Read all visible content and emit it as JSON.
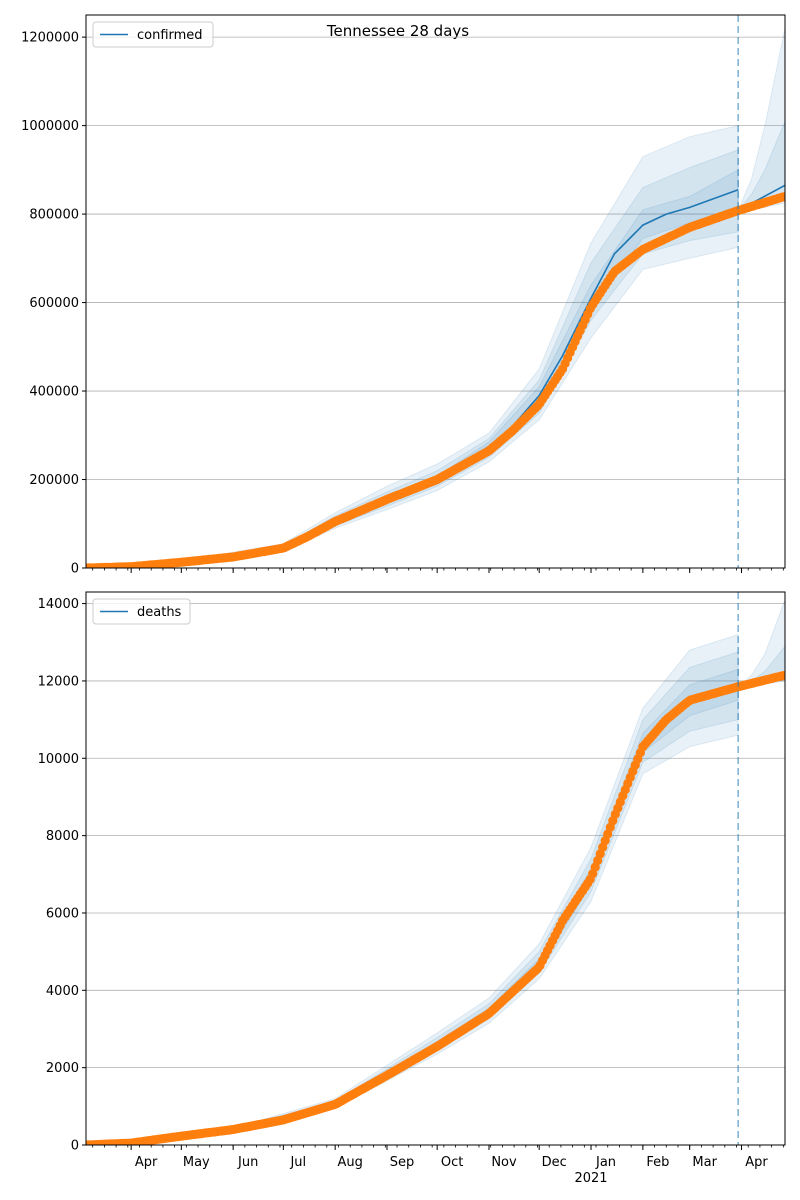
{
  "figure": {
    "title": "Tennessee 28 days"
  },
  "colors": {
    "model_line": "#1f77b4",
    "band": "#1f77b4",
    "observed": "#ff7f0e",
    "grid": "#b0b0b0",
    "forecast_marker": "#1f77b4"
  },
  "chart_data": [
    {
      "type": "line",
      "panel": "confirmed",
      "legend": {
        "entries": [
          "confirmed"
        ],
        "placement": "upper-left"
      },
      "x_axis": {
        "range": [
          "2020-03-05",
          "2021-04-27"
        ],
        "major_ticks": [
          {
            "date": "2020-04-01",
            "label": "Apr"
          },
          {
            "date": "2020-05-01",
            "label": "May"
          },
          {
            "date": "2020-06-01",
            "label": "Jun"
          },
          {
            "date": "2020-07-01",
            "label": "Jul"
          },
          {
            "date": "2020-08-01",
            "label": "Aug"
          },
          {
            "date": "2020-09-01",
            "label": "Sep"
          },
          {
            "date": "2020-10-01",
            "label": "Oct"
          },
          {
            "date": "2020-11-01",
            "label": "Nov"
          },
          {
            "date": "2020-12-01",
            "label": "Dec"
          },
          {
            "date": "2021-01-01",
            "label": "Jan"
          },
          {
            "date": "2021-02-01",
            "label": "Feb"
          },
          {
            "date": "2021-03-01",
            "label": "Mar"
          },
          {
            "date": "2021-04-01",
            "label": "Apr"
          }
        ],
        "year_label": "",
        "show_labels": false
      },
      "y_axis": {
        "range": [
          0,
          1250000
        ],
        "ticks": [
          0,
          200000,
          400000,
          600000,
          800000,
          1000000,
          1200000
        ],
        "tick_labels": [
          "0",
          "200000",
          "400000",
          "600000",
          "800000",
          "1000000",
          "1200000"
        ]
      },
      "grid": "horizontal",
      "forecast_start": "2021-03-30",
      "observed": {
        "x": [
          "2020-03-05",
          "2020-04-01",
          "2020-05-01",
          "2020-06-01",
          "2020-07-01",
          "2020-07-15",
          "2020-08-01",
          "2020-09-01",
          "2020-10-01",
          "2020-11-01",
          "2020-11-15",
          "2020-12-01",
          "2020-12-15",
          "2021-01-01",
          "2021-01-15",
          "2021-02-01",
          "2021-03-01",
          "2021-03-30",
          "2021-04-27"
        ],
        "y": [
          0,
          3000,
          13000,
          25000,
          45000,
          70000,
          105000,
          155000,
          200000,
          265000,
          310000,
          370000,
          450000,
          590000,
          670000,
          720000,
          770000,
          808000,
          840000
        ]
      },
      "model": {
        "x": [
          "2020-03-05",
          "2020-04-01",
          "2020-05-01",
          "2020-06-01",
          "2020-07-01",
          "2020-07-15",
          "2020-08-01",
          "2020-09-01",
          "2020-10-01",
          "2020-11-01",
          "2020-11-15",
          "2020-12-01",
          "2020-12-15",
          "2021-01-01",
          "2021-01-15",
          "2021-02-01",
          "2021-02-15",
          "2021-03-01",
          "2021-03-30"
        ],
        "y": [
          0,
          3000,
          13000,
          25000,
          45000,
          70000,
          105000,
          155000,
          200000,
          275000,
          320000,
          390000,
          480000,
          610000,
          710000,
          775000,
          800000,
          815000,
          855000
        ]
      },
      "forecast_line": {
        "x": [
          "2021-03-30",
          "2021-04-27"
        ],
        "y": [
          808000,
          865000
        ]
      },
      "bands": [
        {
          "x": [
            "2020-03-05",
            "2020-05-01",
            "2020-07-01",
            "2020-08-01",
            "2020-09-01",
            "2020-10-01",
            "2020-11-01",
            "2020-12-01",
            "2021-01-01",
            "2021-02-01",
            "2021-03-01",
            "2021-03-30"
          ],
          "lower": [
            0,
            10000,
            38000,
            90000,
            132000,
            175000,
            240000,
            335000,
            520000,
            675000,
            700000,
            725000
          ],
          "upper": [
            0,
            16000,
            55000,
            125000,
            185000,
            235000,
            305000,
            450000,
            735000,
            930000,
            975000,
            1000000
          ]
        },
        {
          "x": [
            "2020-03-05",
            "2020-05-01",
            "2020-07-01",
            "2020-08-01",
            "2020-09-01",
            "2020-10-01",
            "2020-11-01",
            "2020-12-01",
            "2021-01-01",
            "2021-02-01",
            "2021-03-01",
            "2021-03-30"
          ],
          "lower": [
            0,
            11000,
            40000,
            95000,
            140000,
            185000,
            250000,
            350000,
            560000,
            710000,
            740000,
            760000
          ],
          "upper": [
            0,
            15000,
            50000,
            118000,
            172000,
            220000,
            293000,
            425000,
            690000,
            860000,
            905000,
            945000
          ]
        },
        {
          "x": [
            "2020-03-05",
            "2020-05-01",
            "2020-07-01",
            "2020-08-01",
            "2020-09-01",
            "2020-10-01",
            "2020-11-01",
            "2020-12-01",
            "2021-01-01",
            "2021-02-01",
            "2021-03-01",
            "2021-03-30"
          ],
          "lower": [
            0,
            12000,
            42000,
            100000,
            148000,
            192000,
            262000,
            368000,
            585000,
            745000,
            780000,
            808000
          ],
          "upper": [
            0,
            14000,
            48000,
            110000,
            162000,
            208000,
            285000,
            410000,
            640000,
            810000,
            840000,
            900000
          ]
        },
        {
          "x": [
            "2021-03-30",
            "2021-04-07",
            "2021-04-15",
            "2021-04-27"
          ],
          "lower": [
            808000,
            810000,
            815000,
            825000
          ],
          "upper": [
            808000,
            880000,
            1000000,
            1220000
          ]
        },
        {
          "x": [
            "2021-03-30",
            "2021-04-07",
            "2021-04-15",
            "2021-04-27"
          ],
          "lower": [
            808000,
            812000,
            820000,
            832000
          ],
          "upper": [
            808000,
            845000,
            900000,
            1010000
          ]
        }
      ]
    },
    {
      "type": "line",
      "panel": "deaths",
      "legend": {
        "entries": [
          "deaths"
        ],
        "placement": "upper-left"
      },
      "x_axis": {
        "range": [
          "2020-03-05",
          "2021-04-27"
        ],
        "major_ticks": [
          {
            "date": "2020-04-01",
            "label": "Apr"
          },
          {
            "date": "2020-05-01",
            "label": "May"
          },
          {
            "date": "2020-06-01",
            "label": "Jun"
          },
          {
            "date": "2020-07-01",
            "label": "Jul"
          },
          {
            "date": "2020-08-01",
            "label": "Aug"
          },
          {
            "date": "2020-09-01",
            "label": "Sep"
          },
          {
            "date": "2020-10-01",
            "label": "Oct"
          },
          {
            "date": "2020-11-01",
            "label": "Nov"
          },
          {
            "date": "2020-12-01",
            "label": "Dec"
          },
          {
            "date": "2021-01-01",
            "label": "Jan"
          },
          {
            "date": "2021-02-01",
            "label": "Feb"
          },
          {
            "date": "2021-03-01",
            "label": "Mar"
          },
          {
            "date": "2021-04-01",
            "label": "Apr"
          }
        ],
        "year_label": "2021",
        "show_labels": true
      },
      "y_axis": {
        "range": [
          0,
          14300
        ],
        "ticks": [
          0,
          2000,
          4000,
          6000,
          8000,
          10000,
          12000,
          14000
        ],
        "tick_labels": [
          "0",
          "2000",
          "4000",
          "6000",
          "8000",
          "10000",
          "12000",
          "14000"
        ]
      },
      "grid": "horizontal",
      "forecast_start": "2021-03-30",
      "observed": {
        "x": [
          "2020-03-05",
          "2020-04-01",
          "2020-05-01",
          "2020-06-01",
          "2020-07-01",
          "2020-08-01",
          "2020-09-01",
          "2020-10-01",
          "2020-11-01",
          "2020-12-01",
          "2020-12-15",
          "2021-01-01",
          "2021-01-15",
          "2021-02-01",
          "2021-02-15",
          "2021-03-01",
          "2021-03-30",
          "2021-04-27"
        ],
        "y": [
          0,
          50,
          230,
          400,
          650,
          1050,
          1800,
          2550,
          3400,
          4600,
          5800,
          6900,
          8500,
          10300,
          11000,
          11500,
          11850,
          12150
        ]
      },
      "model": {
        "x": [
          "2020-03-05",
          "2020-04-01",
          "2020-05-01",
          "2020-06-01",
          "2020-07-01",
          "2020-08-01",
          "2020-09-01",
          "2020-10-01",
          "2020-11-01",
          "2020-12-01",
          "2020-12-15",
          "2021-01-01",
          "2021-01-15",
          "2021-02-01",
          "2021-02-15",
          "2021-03-01",
          "2021-03-30"
        ],
        "y": [
          0,
          50,
          230,
          400,
          650,
          1050,
          1850,
          2600,
          3450,
          4700,
          5900,
          7000,
          8600,
          10400,
          11100,
          11550,
          11900
        ]
      },
      "forecast_line": {
        "x": [
          "2021-03-30",
          "2021-04-27"
        ],
        "y": [
          11850,
          12200
        ]
      },
      "bands": [
        {
          "x": [
            "2020-03-05",
            "2020-06-01",
            "2020-08-01",
            "2020-10-01",
            "2020-11-01",
            "2020-12-01",
            "2021-01-01",
            "2021-02-01",
            "2021-03-01",
            "2021-03-30"
          ],
          "lower": [
            0,
            360,
            950,
            2350,
            3150,
            4300,
            6300,
            9600,
            10300,
            10600
          ],
          "upper": [
            0,
            440,
            1200,
            2900,
            3800,
            5200,
            7700,
            11300,
            12800,
            13200
          ]
        },
        {
          "x": [
            "2020-03-05",
            "2020-06-01",
            "2020-08-01",
            "2020-10-01",
            "2020-11-01",
            "2020-12-01",
            "2021-01-01",
            "2021-02-01",
            "2021-03-01",
            "2021-03-30"
          ],
          "lower": [
            0,
            375,
            990,
            2450,
            3260,
            4450,
            6550,
            9900,
            10700,
            11000
          ],
          "upper": [
            0,
            425,
            1140,
            2780,
            3650,
            5000,
            7400,
            11000,
            12350,
            12750
          ]
        },
        {
          "x": [
            "2020-03-05",
            "2020-06-01",
            "2020-08-01",
            "2020-10-01",
            "2020-11-01",
            "2020-12-01",
            "2021-01-01",
            "2021-02-01",
            "2021-03-01",
            "2021-03-30"
          ],
          "lower": [
            0,
            390,
            1020,
            2520,
            3350,
            4560,
            6750,
            10150,
            11100,
            11500
          ],
          "upper": [
            0,
            410,
            1090,
            2680,
            3540,
            4820,
            7150,
            10650,
            11900,
            12300
          ]
        },
        {
          "x": [
            "2021-03-30",
            "2021-04-07",
            "2021-04-15",
            "2021-04-27"
          ],
          "lower": [
            11850,
            11880,
            11920,
            12000
          ],
          "upper": [
            11850,
            12150,
            12700,
            14100
          ]
        },
        {
          "x": [
            "2021-03-30",
            "2021-04-07",
            "2021-04-15",
            "2021-04-27"
          ],
          "lower": [
            11850,
            11900,
            11960,
            12050
          ],
          "upper": [
            11850,
            12000,
            12250,
            12900
          ]
        }
      ]
    }
  ]
}
